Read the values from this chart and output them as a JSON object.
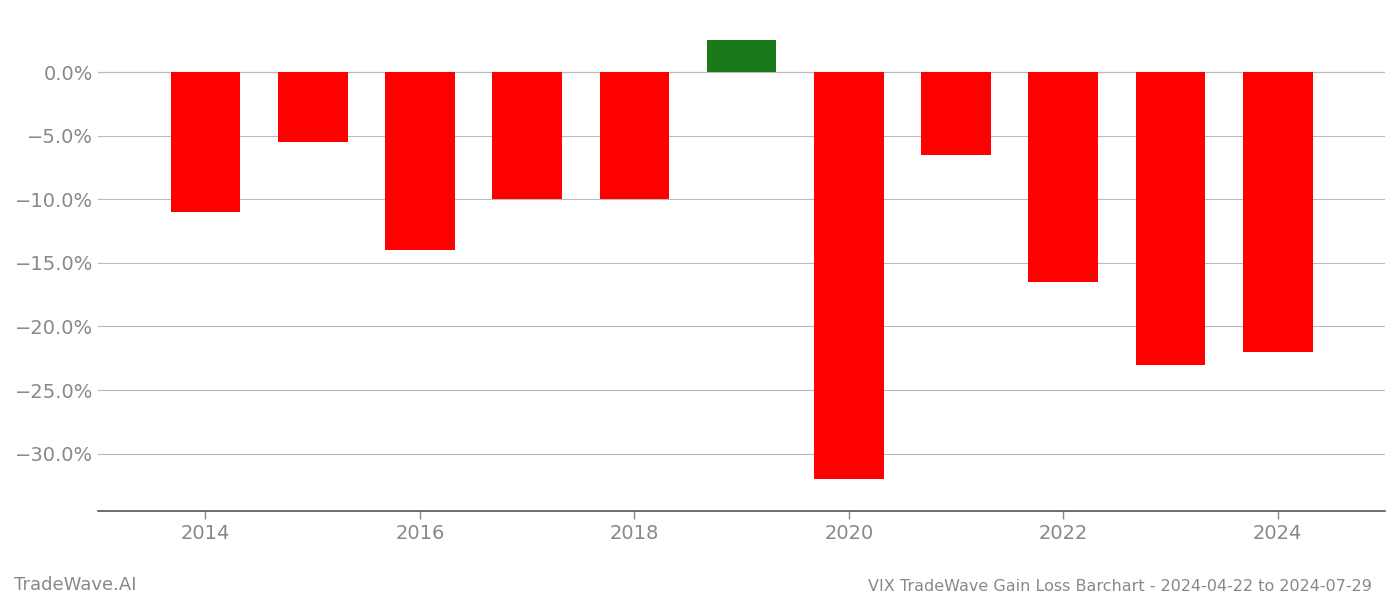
{
  "years": [
    2014,
    2015,
    2016,
    2017,
    2018,
    2019,
    2020,
    2021,
    2022,
    2023,
    2024
  ],
  "values": [
    -0.11,
    -0.055,
    -0.14,
    -0.1,
    -0.1,
    0.025,
    -0.32,
    -0.065,
    -0.165,
    -0.23,
    -0.22
  ],
  "bar_colors": [
    "#ff0000",
    "#ff0000",
    "#ff0000",
    "#ff0000",
    "#ff0000",
    "#1a7a1a",
    "#ff0000",
    "#ff0000",
    "#ff0000",
    "#ff0000",
    "#ff0000"
  ],
  "title": "VIX TradeWave Gain Loss Barchart - 2024-04-22 to 2024-07-29",
  "watermark": "TradeWave.AI",
  "ylim_min": -0.345,
  "ylim_max": 0.045,
  "bar_width": 0.65,
  "background_color": "#ffffff",
  "grid_color": "#bbbbbb",
  "axis_color": "#555555",
  "tick_color": "#888888",
  "title_fontsize": 11.5,
  "watermark_fontsize": 13,
  "tick_fontsize": 14
}
